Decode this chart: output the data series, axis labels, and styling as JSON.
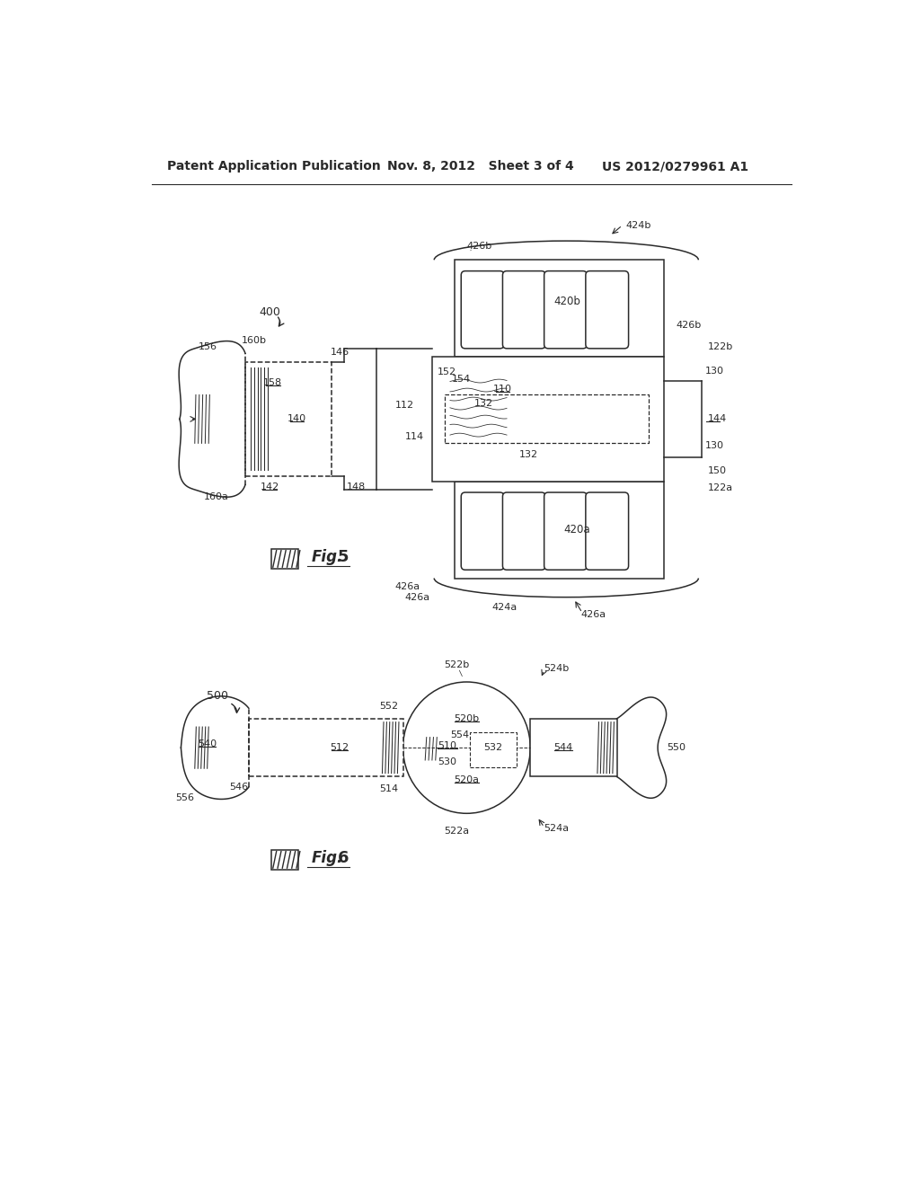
{
  "bg_color": "#ffffff",
  "line_color": "#2a2a2a",
  "header_left": "Patent Application Publication",
  "header_mid": "Nov. 8, 2012   Sheet 3 of 4",
  "header_right": "US 2012/0279961 A1",
  "fig5_num": "400",
  "fig6_num": "500"
}
